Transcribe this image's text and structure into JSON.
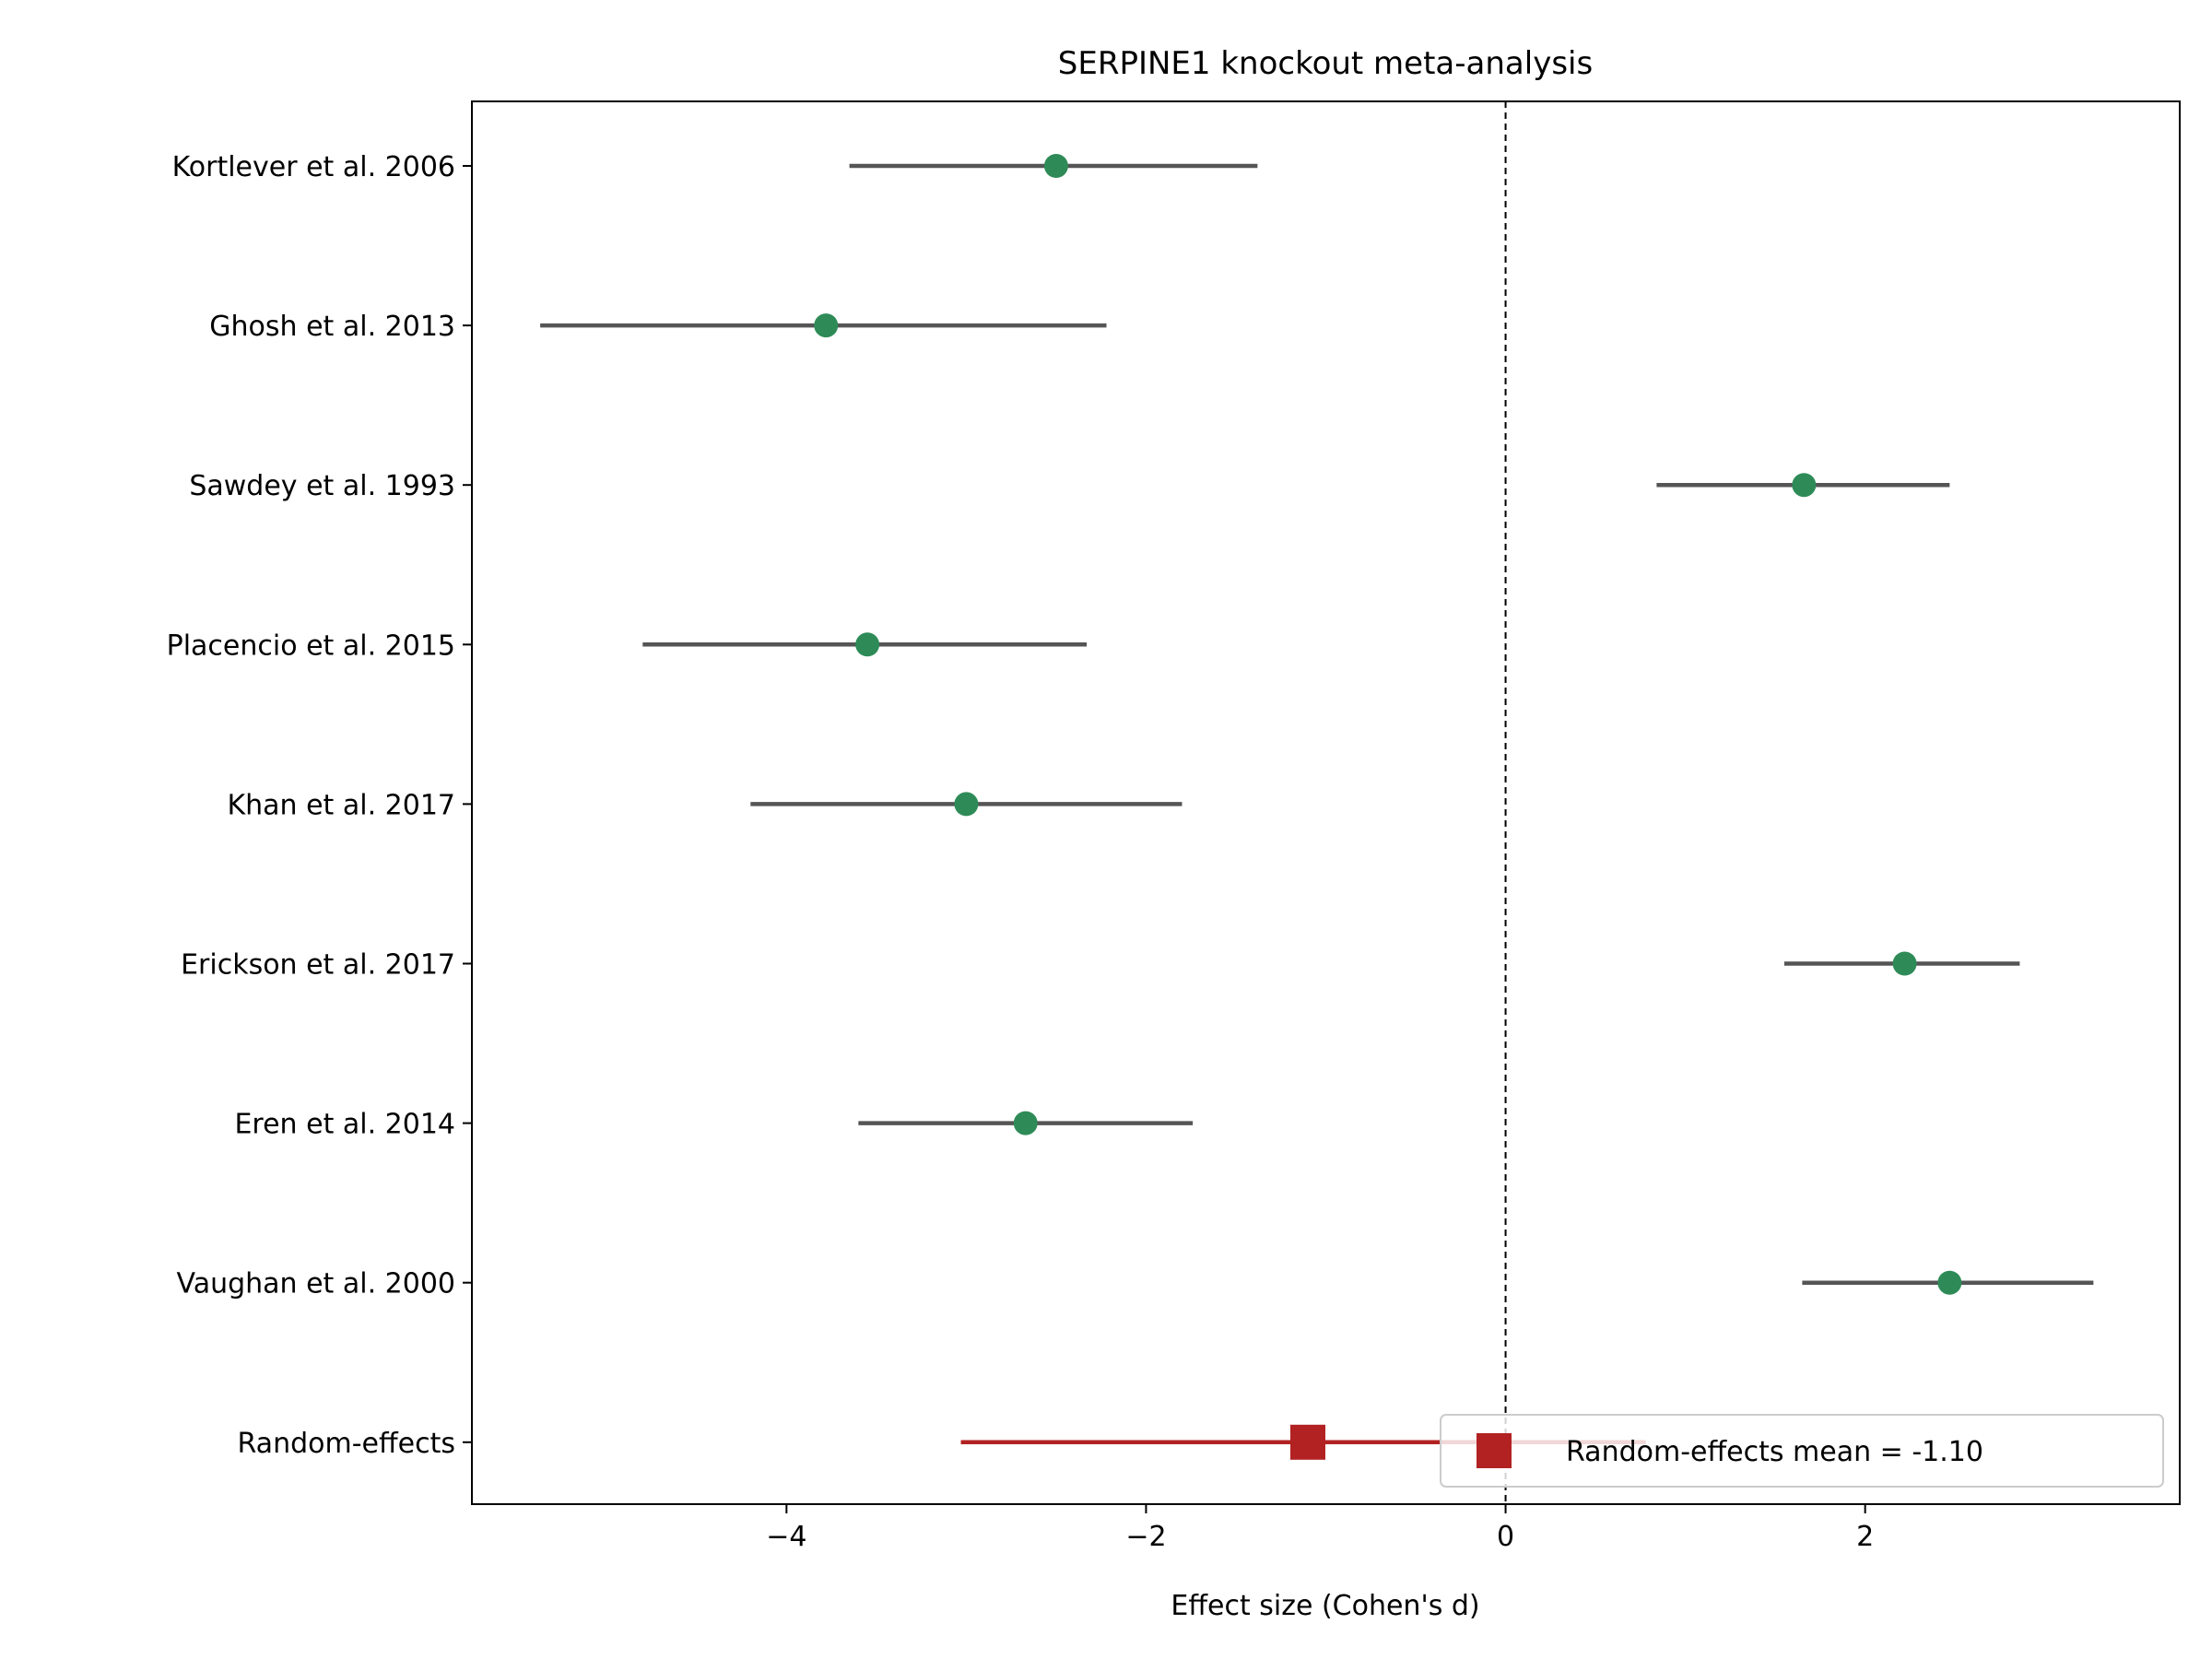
{
  "chart_data": {
    "type": "forest",
    "title": "SERPINE1 knockout meta-analysis",
    "xlabel": "Effect size (Cohen's d)",
    "ylabel": "",
    "xlim": [
      -5.75,
      3.75
    ],
    "x_ticks": [
      -4,
      -2,
      0,
      2
    ],
    "x_tick_labels": [
      "−4",
      "−2",
      "0",
      "2"
    ],
    "reference_line_x": 0,
    "studies": [
      {
        "label": "Kortlever et al. 2006",
        "effect": -2.5,
        "ci_low": -3.65,
        "ci_high": -1.38
      },
      {
        "label": "Ghosh et al. 2013",
        "effect": -3.78,
        "ci_low": -5.37,
        "ci_high": -2.22
      },
      {
        "label": "Sawdey et al. 1993",
        "effect": 1.66,
        "ci_low": 0.84,
        "ci_high": 2.47
      },
      {
        "label": "Placencio et al. 2015",
        "effect": -3.55,
        "ci_low": -4.8,
        "ci_high": -2.33
      },
      {
        "label": "Khan et al. 2017",
        "effect": -3.0,
        "ci_low": -4.2,
        "ci_high": -1.8
      },
      {
        "label": "Erickson et al. 2017",
        "effect": 2.22,
        "ci_low": 1.55,
        "ci_high": 2.86
      },
      {
        "label": "Eren et al. 2014",
        "effect": -2.67,
        "ci_low": -3.6,
        "ci_high": -1.74
      },
      {
        "label": "Vaughan et al. 2000",
        "effect": 2.47,
        "ci_low": 1.65,
        "ci_high": 3.27
      }
    ],
    "pooled": {
      "label": "Random-effects",
      "effect": -1.1,
      "ci_low": -3.03,
      "ci_high": 0.78
    },
    "legend": {
      "label": "Random-effects mean = -1.10",
      "placement": "lower-right"
    },
    "colors": {
      "study_point": "#2e8b57",
      "study_ci": "#555555",
      "pooled": "#b22222",
      "reference_line": "#000000"
    }
  }
}
